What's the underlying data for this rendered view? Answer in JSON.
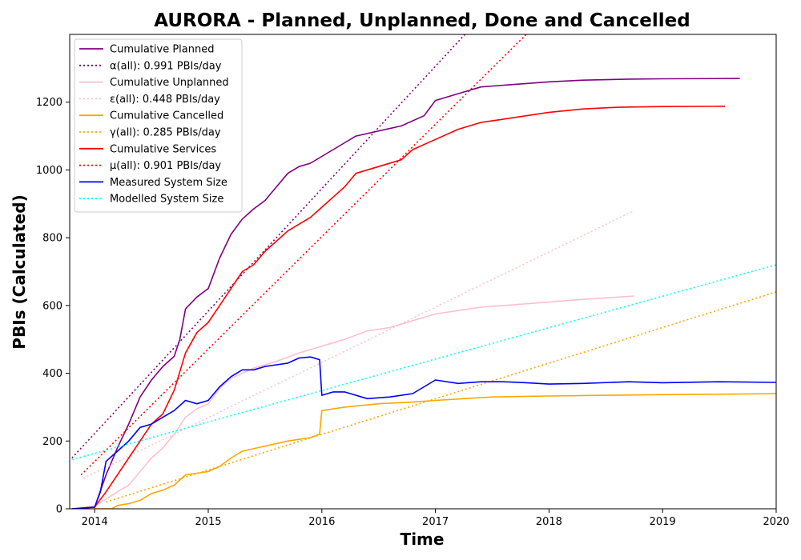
{
  "chart_data": {
    "type": "line",
    "title": "AURORA - Planned, Unplanned, Done  and Cancelled",
    "xlabel": "Time",
    "ylabel": "PBIs (Calculated)",
    "xlim": [
      2013.78,
      2020.0
    ],
    "ylim": [
      0,
      1400
    ],
    "x_ticks": [
      2014,
      2015,
      2016,
      2017,
      2018,
      2019,
      2020
    ],
    "x_tick_labels": [
      "2014",
      "2015",
      "2016",
      "2017",
      "2018",
      "2019",
      "2020"
    ],
    "y_ticks": [
      0,
      200,
      400,
      600,
      800,
      1000,
      1200
    ],
    "y_tick_labels": [
      "0",
      "200",
      "400",
      "600",
      "800",
      "1000",
      "1200"
    ],
    "grid": false,
    "legend_position": "top-left",
    "series": [
      {
        "name": "Cumulative Planned",
        "color": "#800080",
        "style": "solid",
        "points": [
          [
            2013.8,
            0
          ],
          [
            2014.0,
            5
          ],
          [
            2014.1,
            100
          ],
          [
            2014.2,
            180
          ],
          [
            2014.3,
            250
          ],
          [
            2014.4,
            330
          ],
          [
            2014.5,
            380
          ],
          [
            2014.6,
            420
          ],
          [
            2014.7,
            450
          ],
          [
            2014.75,
            500
          ],
          [
            2014.8,
            590
          ],
          [
            2014.9,
            625
          ],
          [
            2015.0,
            650
          ],
          [
            2015.1,
            740
          ],
          [
            2015.2,
            810
          ],
          [
            2015.3,
            855
          ],
          [
            2015.4,
            885
          ],
          [
            2015.5,
            910
          ],
          [
            2015.6,
            950
          ],
          [
            2015.7,
            990
          ],
          [
            2015.8,
            1010
          ],
          [
            2015.9,
            1020
          ],
          [
            2016.0,
            1040
          ],
          [
            2016.1,
            1060
          ],
          [
            2016.2,
            1080
          ],
          [
            2016.3,
            1100
          ],
          [
            2016.5,
            1115
          ],
          [
            2016.7,
            1130
          ],
          [
            2016.9,
            1160
          ],
          [
            2017.0,
            1205
          ],
          [
            2017.2,
            1225
          ],
          [
            2017.4,
            1245
          ],
          [
            2017.6,
            1250
          ],
          [
            2017.8,
            1255
          ],
          [
            2018.0,
            1260
          ],
          [
            2018.3,
            1265
          ],
          [
            2018.7,
            1268
          ],
          [
            2019.0,
            1269
          ],
          [
            2019.68,
            1270
          ]
        ]
      },
      {
        "name": "α(all): 0.991 PBIs/day",
        "color": "#800080",
        "style": "dotted",
        "points": [
          [
            2013.8,
            150
          ],
          [
            2017.26,
            1400
          ]
        ]
      },
      {
        "name": "Cumulative Unplanned",
        "color": "#ffc0cb",
        "style": "solid",
        "points": [
          [
            2013.8,
            0
          ],
          [
            2014.0,
            8
          ],
          [
            2014.2,
            50
          ],
          [
            2014.3,
            70
          ],
          [
            2014.4,
            110
          ],
          [
            2014.5,
            150
          ],
          [
            2014.6,
            180
          ],
          [
            2014.7,
            220
          ],
          [
            2014.8,
            270
          ],
          [
            2014.9,
            295
          ],
          [
            2015.0,
            310
          ],
          [
            2015.1,
            355
          ],
          [
            2015.2,
            385
          ],
          [
            2015.4,
            415
          ],
          [
            2015.6,
            435
          ],
          [
            2015.8,
            460
          ],
          [
            2016.0,
            480
          ],
          [
            2016.2,
            500
          ],
          [
            2016.4,
            525
          ],
          [
            2016.6,
            535
          ],
          [
            2016.8,
            555
          ],
          [
            2017.0,
            575
          ],
          [
            2017.2,
            585
          ],
          [
            2017.4,
            595
          ],
          [
            2017.6,
            600
          ],
          [
            2018.0,
            610
          ],
          [
            2018.3,
            618
          ],
          [
            2018.75,
            628
          ]
        ]
      },
      {
        "name": "ε(all): 0.448 PBIs/day",
        "color": "#ffc0cb",
        "style": "dotted",
        "points": [
          [
            2013.9,
            90
          ],
          [
            2018.75,
            880
          ]
        ]
      },
      {
        "name": "Cumulative Cancelled",
        "color": "#ffa500",
        "style": "solid",
        "points": [
          [
            2013.8,
            0
          ],
          [
            2014.15,
            0
          ],
          [
            2014.2,
            10
          ],
          [
            2014.3,
            15
          ],
          [
            2014.4,
            25
          ],
          [
            2014.5,
            45
          ],
          [
            2014.6,
            55
          ],
          [
            2014.7,
            70
          ],
          [
            2014.8,
            100
          ],
          [
            2014.9,
            105
          ],
          [
            2015.0,
            110
          ],
          [
            2015.1,
            125
          ],
          [
            2015.2,
            150
          ],
          [
            2015.3,
            170
          ],
          [
            2015.5,
            185
          ],
          [
            2015.7,
            200
          ],
          [
            2015.9,
            210
          ],
          [
            2015.98,
            220
          ],
          [
            2016.0,
            290
          ],
          [
            2016.2,
            300
          ],
          [
            2016.5,
            310
          ],
          [
            2016.8,
            315
          ],
          [
            2017.0,
            320
          ],
          [
            2017.5,
            330
          ],
          [
            2018.0,
            333
          ],
          [
            2018.5,
            335
          ],
          [
            2019.0,
            337
          ],
          [
            2019.5,
            338
          ],
          [
            2020.0,
            340
          ]
        ]
      },
      {
        "name": "γ(all): 0.285 PBIs/day",
        "color": "#ffa500",
        "style": "dotted",
        "points": [
          [
            2014.1,
            20
          ],
          [
            2020.0,
            640
          ]
        ]
      },
      {
        "name": "Cumulative Services",
        "color": "#ff0000",
        "style": "solid",
        "points": [
          [
            2013.8,
            0
          ],
          [
            2014.0,
            5
          ],
          [
            2014.1,
            50
          ],
          [
            2014.2,
            100
          ],
          [
            2014.3,
            150
          ],
          [
            2014.4,
            200
          ],
          [
            2014.5,
            250
          ],
          [
            2014.6,
            280
          ],
          [
            2014.7,
            350
          ],
          [
            2014.8,
            460
          ],
          [
            2014.9,
            520
          ],
          [
            2015.0,
            550
          ],
          [
            2015.1,
            600
          ],
          [
            2015.2,
            650
          ],
          [
            2015.3,
            700
          ],
          [
            2015.4,
            720
          ],
          [
            2015.5,
            760
          ],
          [
            2015.6,
            790
          ],
          [
            2015.7,
            820
          ],
          [
            2015.8,
            840
          ],
          [
            2015.9,
            860
          ],
          [
            2016.0,
            890
          ],
          [
            2016.1,
            920
          ],
          [
            2016.2,
            950
          ],
          [
            2016.3,
            990
          ],
          [
            2016.5,
            1010
          ],
          [
            2016.7,
            1030
          ],
          [
            2016.8,
            1060
          ],
          [
            2017.0,
            1090
          ],
          [
            2017.2,
            1120
          ],
          [
            2017.4,
            1140
          ],
          [
            2017.6,
            1150
          ],
          [
            2017.8,
            1160
          ],
          [
            2018.0,
            1170
          ],
          [
            2018.3,
            1180
          ],
          [
            2018.6,
            1185
          ],
          [
            2019.0,
            1187
          ],
          [
            2019.55,
            1188
          ]
        ]
      },
      {
        "name": "μ(all): 0.901 PBIs/day",
        "color": "#ff0000",
        "style": "dotted",
        "points": [
          [
            2013.88,
            100
          ],
          [
            2017.8,
            1400
          ]
        ]
      },
      {
        "name": "Measured System Size",
        "color": "#0000ff",
        "style": "solid",
        "points": [
          [
            2013.8,
            0
          ],
          [
            2014.0,
            5
          ],
          [
            2014.05,
            50
          ],
          [
            2014.1,
            140
          ],
          [
            2014.2,
            170
          ],
          [
            2014.3,
            200
          ],
          [
            2014.4,
            240
          ],
          [
            2014.5,
            250
          ],
          [
            2014.6,
            270
          ],
          [
            2014.7,
            290
          ],
          [
            2014.8,
            320
          ],
          [
            2014.9,
            310
          ],
          [
            2015.0,
            320
          ],
          [
            2015.1,
            360
          ],
          [
            2015.2,
            390
          ],
          [
            2015.3,
            410
          ],
          [
            2015.4,
            410
          ],
          [
            2015.5,
            420
          ],
          [
            2015.6,
            425
          ],
          [
            2015.7,
            430
          ],
          [
            2015.8,
            445
          ],
          [
            2015.9,
            448
          ],
          [
            2015.98,
            440
          ],
          [
            2016.0,
            335
          ],
          [
            2016.1,
            345
          ],
          [
            2016.2,
            345
          ],
          [
            2016.4,
            325
          ],
          [
            2016.6,
            330
          ],
          [
            2016.8,
            340
          ],
          [
            2017.0,
            380
          ],
          [
            2017.2,
            370
          ],
          [
            2017.4,
            375
          ],
          [
            2017.6,
            375
          ],
          [
            2017.8,
            372
          ],
          [
            2018.0,
            368
          ],
          [
            2018.3,
            370
          ],
          [
            2018.7,
            375
          ],
          [
            2019.0,
            372
          ],
          [
            2019.5,
            375
          ],
          [
            2020.0,
            373
          ]
        ]
      },
      {
        "name": "Modelled System Size",
        "color": "#00ffff",
        "style": "dotted",
        "points": [
          [
            2013.8,
            145
          ],
          [
            2020.0,
            720
          ]
        ]
      }
    ]
  }
}
